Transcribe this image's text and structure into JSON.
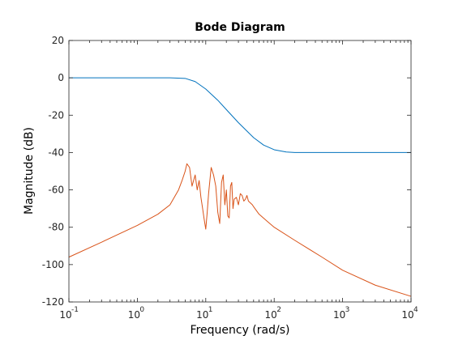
{
  "chart_data": {
    "type": "line",
    "title": "Bode Diagram",
    "xlabel": "Frequency  (rad/s)",
    "ylabel": "Magnitude (dB)",
    "xscale": "log",
    "xlim": [
      0.1,
      10000
    ],
    "ylim": [
      -120,
      20
    ],
    "xticks": [
      {
        "value": 0.1,
        "base": "10",
        "exp": "-1"
      },
      {
        "value": 1,
        "base": "10",
        "exp": "0"
      },
      {
        "value": 10,
        "base": "10",
        "exp": "1"
      },
      {
        "value": 100,
        "base": "10",
        "exp": "2"
      },
      {
        "value": 1000,
        "base": "10",
        "exp": "3"
      },
      {
        "value": 10000,
        "base": "10",
        "exp": "4"
      }
    ],
    "yticks": [
      20,
      0,
      -20,
      -40,
      -60,
      -80,
      -100,
      -120
    ],
    "yticklabels": [
      "20",
      "0",
      "-20",
      "-40",
      "-60",
      "-80",
      "-100",
      "-120"
    ],
    "grid": false,
    "series": [
      {
        "color": "#0072bd",
        "x": [
          0.1,
          1,
          3,
          5,
          7,
          10,
          15,
          20,
          30,
          50,
          70,
          100,
          150,
          200,
          300,
          1000,
          10000
        ],
        "y": [
          0,
          0,
          0,
          -0.3,
          -2,
          -6,
          -12,
          -17,
          -24,
          -32,
          -36,
          -38.5,
          -39.7,
          -40,
          -40,
          -40,
          -40
        ]
      },
      {
        "color": "#d95319",
        "x": [
          0.1,
          0.3,
          1,
          2,
          3,
          4,
          4.5,
          5,
          5.3,
          5.8,
          6.3,
          7,
          7.5,
          8,
          8.5,
          9,
          9.5,
          10,
          10.5,
          11,
          12,
          13,
          14,
          15,
          16,
          17,
          18,
          19,
          20,
          21,
          22,
          23,
          24,
          25,
          26,
          28,
          30,
          32,
          34,
          36,
          38,
          40,
          42,
          45,
          48,
          50,
          60,
          80,
          100,
          200,
          500,
          1000,
          3000,
          10000
        ],
        "y": [
          -96,
          -88,
          -79,
          -73,
          -68,
          -60,
          -55,
          -50,
          -46,
          -48,
          -58,
          -52,
          -60,
          -55,
          -64,
          -70,
          -76,
          -81,
          -72,
          -62,
          -48,
          -52,
          -58,
          -72,
          -78,
          -56,
          -52,
          -68,
          -60,
          -74,
          -75,
          -58,
          -56,
          -70,
          -65,
          -64,
          -68,
          -62,
          -63,
          -66,
          -65,
          -63,
          -66,
          -67,
          -68,
          -69,
          -73,
          -77,
          -80,
          -87,
          -96,
          -103,
          -111,
          -117
        ]
      }
    ]
  }
}
